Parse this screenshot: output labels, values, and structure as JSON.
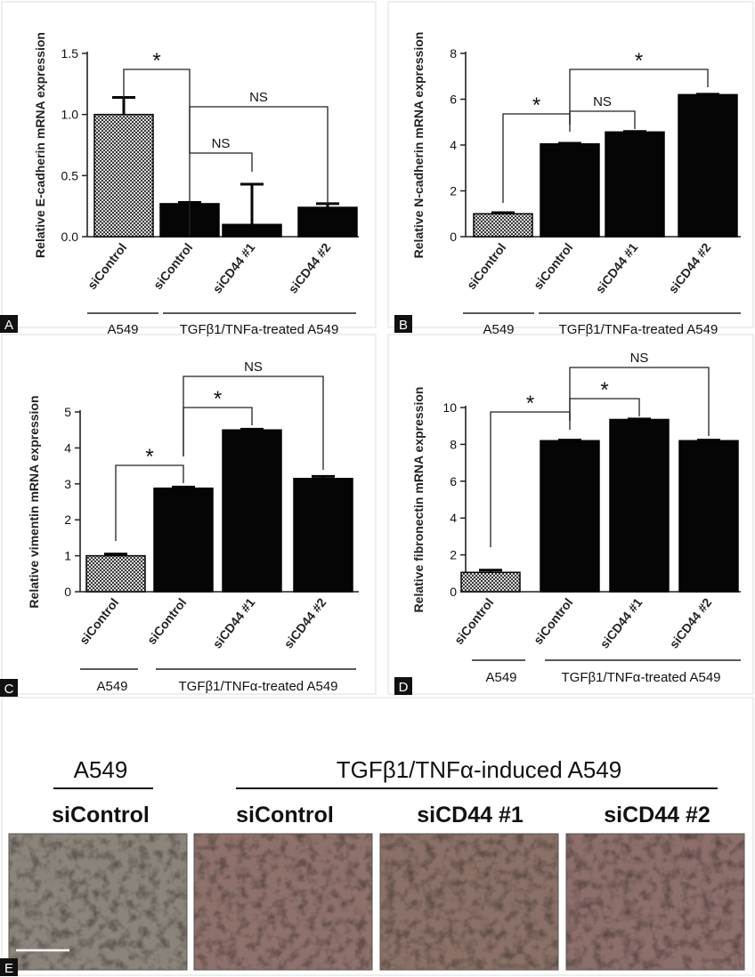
{
  "chart_data": [
    {
      "panel": "A",
      "type": "bar",
      "ylabel": "Relative E-cadherin mRNA expression",
      "ylim": [
        0,
        1.5
      ],
      "yticks": [
        "0.0",
        "0.5",
        "1.0",
        "1.5"
      ],
      "categories": [
        "siControl",
        "siControl",
        "siCD44 #1",
        "siCD44 #2"
      ],
      "values": [
        1.0,
        0.27,
        0.1,
        0.24
      ],
      "errors": [
        0.14,
        0.01,
        0.33,
        0.03
      ],
      "patterns": [
        "hatched",
        "solid",
        "solid",
        "solid"
      ],
      "groups": [
        "A549",
        "TGFβ1/TNFa-treated A549"
      ],
      "annotations": [
        "*",
        "NS",
        "NS"
      ]
    },
    {
      "panel": "B",
      "type": "bar",
      "ylabel": "Relative N-cadherin mRNA expression",
      "ylim": [
        0,
        8
      ],
      "yticks": [
        "0",
        "2",
        "4",
        "6",
        "8"
      ],
      "categories": [
        "siControl",
        "siControl",
        "siCD44 #1",
        "siCD44 #2"
      ],
      "values": [
        1.0,
        4.05,
        4.57,
        6.2
      ],
      "errors": [
        0.05,
        0.03,
        0.02,
        0.02
      ],
      "patterns": [
        "hatched",
        "solid",
        "solid",
        "solid"
      ],
      "groups": [
        "A549",
        "TGFβ1/TNFa-treated A549"
      ],
      "annotations": [
        "*",
        "NS",
        "*"
      ]
    },
    {
      "panel": "C",
      "type": "bar",
      "ylabel": "Relative vimentin mRNA expression",
      "ylim": [
        0,
        5
      ],
      "yticks": [
        "0",
        "1",
        "2",
        "3",
        "4",
        "5"
      ],
      "categories": [
        "siControl",
        "siControl",
        "siCD44 #1",
        "siCD44 #2"
      ],
      "values": [
        1.0,
        2.88,
        4.5,
        3.15
      ],
      "errors": [
        0.05,
        0.03,
        0.02,
        0.06
      ],
      "patterns": [
        "hatched",
        "solid",
        "solid",
        "solid"
      ],
      "groups": [
        "A549",
        "TGFβ1/TNFα-treated A549"
      ],
      "annotations": [
        "*",
        "*",
        "NS"
      ]
    },
    {
      "panel": "D",
      "type": "bar",
      "ylabel": "Relative fibronectin mRNA expression",
      "ylim": [
        0,
        10
      ],
      "yticks": [
        "0",
        "2",
        "4",
        "6",
        "8",
        "10"
      ],
      "categories": [
        "siControl",
        "siControl",
        "siCD44 #1",
        "siCD44 #2"
      ],
      "values": [
        1.05,
        8.2,
        9.35,
        8.2
      ],
      "errors": [
        0.12,
        0.03,
        0.03,
        0.03
      ],
      "patterns": [
        "hatched",
        "solid",
        "solid",
        "solid"
      ],
      "groups": [
        "A549",
        "TGFβ1/TNFα-treated A549"
      ],
      "annotations": [
        "*",
        "*",
        "NS"
      ]
    }
  ],
  "panel_e": {
    "label": "E",
    "group_left": "A549",
    "group_right": "TGFβ1/TNFα-induced A549",
    "conditions": [
      "siControl",
      "siControl",
      "siCD44 #1",
      "siCD44 #2"
    ],
    "photo_colors": [
      "#8b847b",
      "#8f716c",
      "#8a7066",
      "#8c6e6b"
    ]
  }
}
